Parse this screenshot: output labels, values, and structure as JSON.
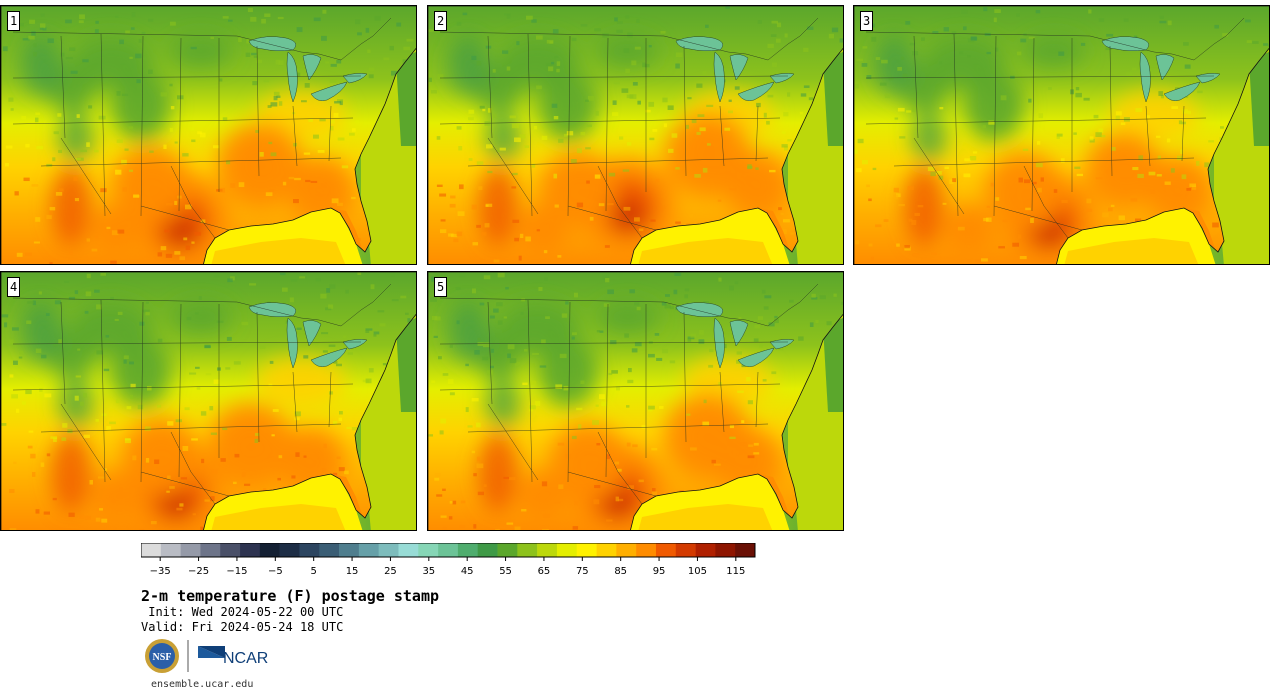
{
  "panels": [
    {
      "label": "1",
      "variant": 0
    },
    {
      "label": "2",
      "variant": 1
    },
    {
      "label": "3",
      "variant": 2
    },
    {
      "label": "4",
      "variant": 3
    },
    {
      "label": "5",
      "variant": 4
    }
  ],
  "colorbar": {
    "colors": [
      "#dcdcdc",
      "#b9bcc4",
      "#959aa8",
      "#6d7489",
      "#4a5068",
      "#2d3350",
      "#142033",
      "#1d2d45",
      "#2c4560",
      "#3b5e75",
      "#4f7e8e",
      "#66a0a8",
      "#7dbcbc",
      "#98dcd6",
      "#86d6b6",
      "#6cc397",
      "#4fad6e",
      "#3f9a47",
      "#5ba72c",
      "#8dc21c",
      "#bcd80b",
      "#e4ee00",
      "#fff200",
      "#ffd200",
      "#ffaf00",
      "#ff8c00",
      "#f05a00",
      "#d33a00",
      "#b02000",
      "#8e1500",
      "#6a1005"
    ],
    "ticks": [
      "−35",
      "−25",
      "−15",
      "−5",
      "5",
      "15",
      "25",
      "35",
      "45",
      "55",
      "65",
      "75",
      "85",
      "95",
      "105",
      "115"
    ],
    "min": -40,
    "max": 115,
    "step": 5
  },
  "title": "2-m temperature (F) postage stamp",
  "init": " Init: Wed 2024-05-22 00 UTC",
  "valid": "Valid: Fri 2024-05-24 18 UTC",
  "logos": {
    "nsf": "NSF",
    "ncar": "NCAR"
  },
  "site": "ensemble.ucar.edu"
}
